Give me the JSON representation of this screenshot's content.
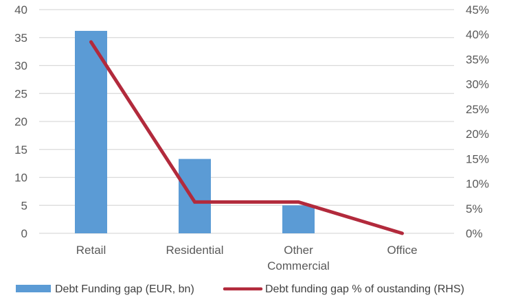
{
  "chart_data": {
    "type": "bar",
    "categories": [
      "Retail",
      "Residential",
      "Other Commercial",
      "Office"
    ],
    "category_lines": [
      [
        "Retail"
      ],
      [
        "Residential"
      ],
      [
        "Other",
        "Commercial"
      ],
      [
        "Office"
      ]
    ],
    "series": [
      {
        "name": "Debt Funding gap (EUR, bn)",
        "type": "bar",
        "axis": "left",
        "color": "#5B9BD5",
        "values": [
          36.2,
          13.3,
          5.0,
          0
        ]
      },
      {
        "name": "Debt funding gap % of oustanding (RHS)",
        "type": "line",
        "axis": "right",
        "color": "#B22A3C",
        "values": [
          38.5,
          6.3,
          6.3,
          0
        ]
      }
    ],
    "y_left": {
      "range": [
        0,
        40
      ],
      "ticks": [
        "0",
        "5",
        "10",
        "15",
        "20",
        "25",
        "30",
        "35",
        "40"
      ]
    },
    "y_right": {
      "range": [
        0,
        45
      ],
      "ticks": [
        "0%",
        "5%",
        "10%",
        "15%",
        "20%",
        "25%",
        "30%",
        "35%",
        "40%",
        "45%"
      ]
    },
    "grid": true,
    "legend_position": "bottom",
    "title": "",
    "xlabel": "",
    "ylabel": ""
  }
}
